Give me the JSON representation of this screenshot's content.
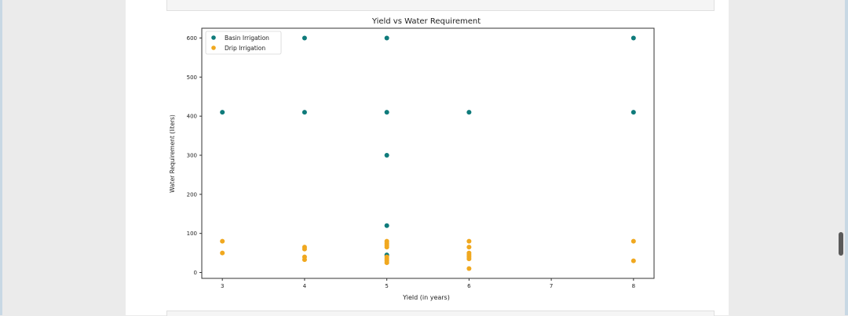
{
  "chart_data": {
    "type": "scatter",
    "title": "Yield vs Water Requirement",
    "xlabel": "Yield (in years)",
    "ylabel": "Water Requirement (liters)",
    "xlim": [
      2.75,
      8.25
    ],
    "ylim": [
      -15,
      625
    ],
    "xticks": [
      3,
      4,
      5,
      6,
      7,
      8
    ],
    "yticks": [
      0,
      100,
      200,
      300,
      400,
      500,
      600
    ],
    "legend_position": "top-left",
    "series": [
      {
        "name": "Basin Irrigation",
        "color": "#0f7b7b",
        "points": [
          [
            3,
            410
          ],
          [
            4,
            410
          ],
          [
            4,
            600
          ],
          [
            5,
            600
          ],
          [
            5,
            410
          ],
          [
            5,
            300
          ],
          [
            5,
            120
          ],
          [
            5,
            45
          ],
          [
            6,
            410
          ],
          [
            8,
            600
          ],
          [
            8,
            410
          ]
        ]
      },
      {
        "name": "Drip Irrigation",
        "color": "#f0a81f",
        "points": [
          [
            3,
            80
          ],
          [
            3,
            50
          ],
          [
            4,
            65
          ],
          [
            4,
            60
          ],
          [
            4,
            40
          ],
          [
            4,
            33
          ],
          [
            5,
            80
          ],
          [
            5,
            75
          ],
          [
            5,
            70
          ],
          [
            5,
            65
          ],
          [
            5,
            40
          ],
          [
            5,
            35
          ],
          [
            5,
            30
          ],
          [
            5,
            25
          ],
          [
            6,
            80
          ],
          [
            6,
            65
          ],
          [
            6,
            50
          ],
          [
            6,
            45
          ],
          [
            6,
            40
          ],
          [
            6,
            35
          ],
          [
            6,
            10
          ],
          [
            8,
            80
          ],
          [
            8,
            30
          ]
        ]
      }
    ]
  }
}
